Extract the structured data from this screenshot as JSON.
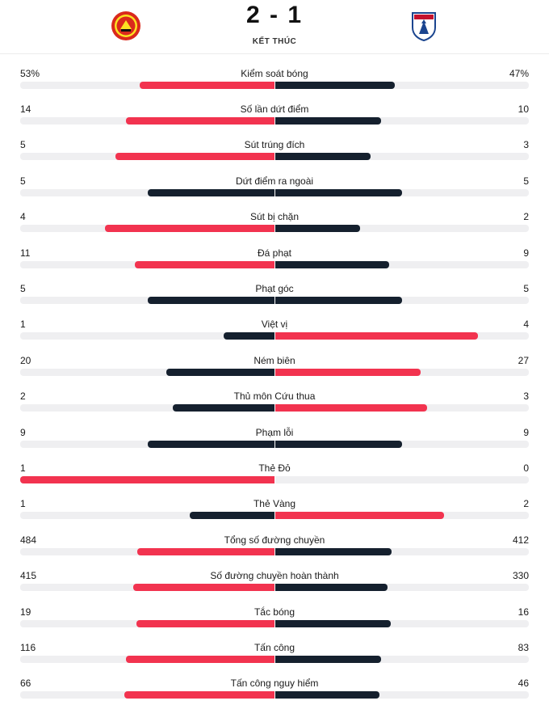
{
  "match": {
    "score": "2 - 1",
    "status": "KẾT THÚC",
    "home_crest_icon": "manchester-united-crest-icon",
    "away_crest_icon": "crystal-palace-crest-icon"
  },
  "colors": {
    "winner": "#f2334f",
    "other": "#15202e",
    "track": "#efeff1"
  },
  "stats": [
    {
      "label": "Kiểm soát bóng",
      "home": "53%",
      "away": "47%",
      "home_share": 0.53,
      "away_share": 0.47
    },
    {
      "label": "Số lần dứt điểm",
      "home": "14",
      "away": "10",
      "home_share": 0.583,
      "away_share": 0.417
    },
    {
      "label": "Sút trúng đích",
      "home": "5",
      "away": "3",
      "home_share": 0.625,
      "away_share": 0.375
    },
    {
      "label": "Dứt điểm ra ngoài",
      "home": "5",
      "away": "5",
      "home_share": 0.5,
      "away_share": 0.5
    },
    {
      "label": "Sút bị chặn",
      "home": "4",
      "away": "2",
      "home_share": 0.667,
      "away_share": 0.333
    },
    {
      "label": "Đá phạt",
      "home": "11",
      "away": "9",
      "home_share": 0.55,
      "away_share": 0.45
    },
    {
      "label": "Phạt góc",
      "home": "5",
      "away": "5",
      "home_share": 0.5,
      "away_share": 0.5
    },
    {
      "label": "Việt vị",
      "home": "1",
      "away": "4",
      "home_share": 0.2,
      "away_share": 0.8
    },
    {
      "label": "Ném biên",
      "home": "20",
      "away": "27",
      "home_share": 0.426,
      "away_share": 0.574
    },
    {
      "label": "Thủ môn Cứu thua",
      "home": "2",
      "away": "3",
      "home_share": 0.4,
      "away_share": 0.6
    },
    {
      "label": "Phạm lỗi",
      "home": "9",
      "away": "9",
      "home_share": 0.5,
      "away_share": 0.5
    },
    {
      "label": "Thẻ Đỏ",
      "home": "1",
      "away": "0",
      "home_share": 1.0,
      "away_share": 0.0
    },
    {
      "label": "Thẻ Vàng",
      "home": "1",
      "away": "2",
      "home_share": 0.333,
      "away_share": 0.667
    },
    {
      "label": "Tổng số đường chuyền",
      "home": "484",
      "away": "412",
      "home_share": 0.54,
      "away_share": 0.46
    },
    {
      "label": "Số đường chuyền hoàn thành",
      "home": "415",
      "away": "330",
      "home_share": 0.557,
      "away_share": 0.443
    },
    {
      "label": "Tắc bóng",
      "home": "19",
      "away": "16",
      "home_share": 0.543,
      "away_share": 0.457
    },
    {
      "label": "Tấn công",
      "home": "116",
      "away": "83",
      "home_share": 0.583,
      "away_share": 0.417
    },
    {
      "label": "Tấn công nguy hiểm",
      "home": "66",
      "away": "46",
      "home_share": 0.589,
      "away_share": 0.411
    }
  ]
}
